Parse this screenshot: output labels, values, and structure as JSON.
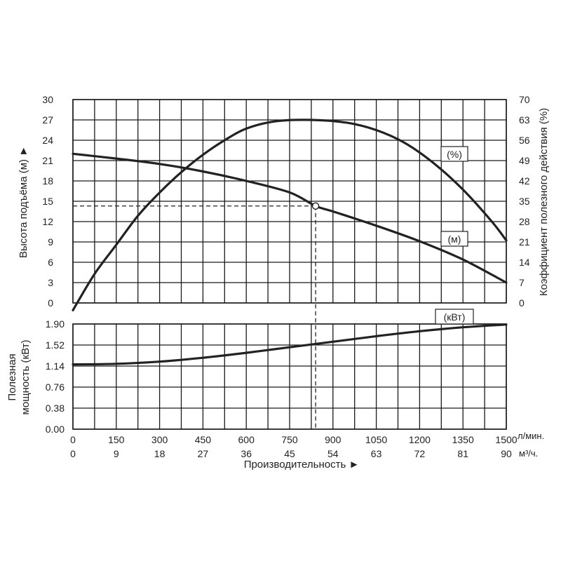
{
  "chart_data": {
    "type": "line",
    "x_axis": {
      "label": "Производительность ►",
      "primary": {
        "ticks": [
          "0",
          "150",
          "300",
          "450",
          "600",
          "750",
          "900",
          "1050",
          "1200",
          "1350",
          "1500"
        ],
        "unit": "л/мин.",
        "range": [
          0,
          1500
        ]
      },
      "secondary": {
        "ticks": [
          "0",
          "9",
          "18",
          "27",
          "36",
          "45",
          "54",
          "63",
          "72",
          "81",
          "90"
        ],
        "unit": "м³/ч."
      }
    },
    "upper_panel": {
      "left_axis": {
        "label": "Высота подъёма (м) ►",
        "ticks": [
          "0",
          "3",
          "6",
          "9",
          "12",
          "15",
          "18",
          "21",
          "24",
          "27",
          "30"
        ],
        "range": [
          0,
          30
        ]
      },
      "right_axis": {
        "label": "Коэффициент полезного действия (%)",
        "ticks": [
          "0",
          "7",
          "14",
          "21",
          "28",
          "35",
          "42",
          "49",
          "56",
          "63",
          "70"
        ],
        "range": [
          0,
          70
        ]
      },
      "series": [
        {
          "name": "(м)",
          "axis": "left",
          "points": [
            [
              0,
              22.0
            ],
            [
              150,
              21.3
            ],
            [
              300,
              20.5
            ],
            [
              450,
              19.4
            ],
            [
              600,
              18.0
            ],
            [
              750,
              16.3
            ],
            [
              840,
              14.3
            ],
            [
              900,
              13.5
            ],
            [
              1050,
              11.4
            ],
            [
              1200,
              9.1
            ],
            [
              1350,
              6.4
            ],
            [
              1500,
              3.0
            ]
          ]
        },
        {
          "name": "(%)",
          "axis": "right",
          "points": [
            [
              0,
              -2.5
            ],
            [
              75,
              10
            ],
            [
              150,
              20
            ],
            [
              225,
              30
            ],
            [
              300,
              38
            ],
            [
              375,
              45
            ],
            [
              450,
              51
            ],
            [
              525,
              56
            ],
            [
              600,
              60
            ],
            [
              700,
              62.5
            ],
            [
              825,
              63
            ],
            [
              950,
              62
            ],
            [
              1050,
              59.5
            ],
            [
              1150,
              55
            ],
            [
              1250,
              48
            ],
            [
              1350,
              39
            ],
            [
              1450,
              28
            ],
            [
              1500,
              21.5
            ]
          ]
        }
      ],
      "operating_point": {
        "x": 840,
        "y": 14.3
      }
    },
    "lower_panel": {
      "left_axis": {
        "label_line1": "Полезная",
        "label_line2": "мощность (кВт)",
        "ticks": [
          "0.00",
          "0.38",
          "0.76",
          "1.14",
          "1.52",
          "1.90"
        ],
        "range": [
          0,
          1.9
        ]
      },
      "series": [
        {
          "name": "(кВт)",
          "points": [
            [
              0,
              1.17
            ],
            [
              150,
              1.18
            ],
            [
              300,
              1.22
            ],
            [
              450,
              1.29
            ],
            [
              600,
              1.38
            ],
            [
              750,
              1.48
            ],
            [
              900,
              1.58
            ],
            [
              1050,
              1.68
            ],
            [
              1200,
              1.77
            ],
            [
              1350,
              1.84
            ],
            [
              1500,
              1.89
            ]
          ]
        }
      ]
    }
  }
}
